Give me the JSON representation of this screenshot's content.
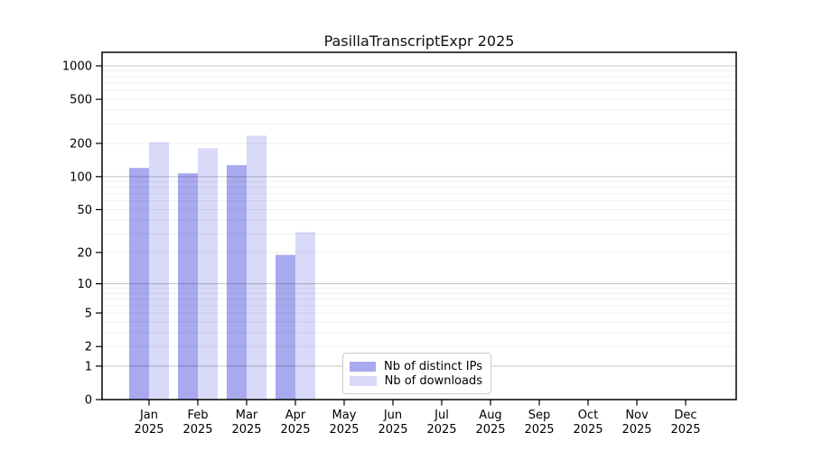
{
  "chart_data": {
    "type": "bar",
    "title": "PasillaTranscriptExpr 2025",
    "categories": [
      "Jan",
      "Feb",
      "Mar",
      "Apr",
      "May",
      "Jun",
      "Jul",
      "Aug",
      "Sep",
      "Oct",
      "Nov",
      "Dec"
    ],
    "x_year_label": "2025",
    "series": [
      {
        "name": "Nb of distinct IPs",
        "color": "#a9a9ef",
        "values": [
          120,
          107,
          127,
          19,
          0,
          0,
          0,
          0,
          0,
          0,
          0,
          0
        ]
      },
      {
        "name": "Nb of downloads",
        "color": "#d9d9f8",
        "values": [
          205,
          181,
          235,
          31,
          0,
          0,
          0,
          0,
          0,
          0,
          0,
          0
        ]
      }
    ],
    "yscale": "log1p",
    "yticks": [
      0,
      1,
      2,
      5,
      10,
      20,
      50,
      100,
      200,
      500,
      1000
    ],
    "ylim": [
      0,
      1325
    ],
    "grid": "horizontal-minor-and-major",
    "legend_position": "bottom-center",
    "frame": true
  },
  "colors": {
    "major_gridline_powers_of_ten": "#c8c8c8",
    "minor_gridline": "#efefef",
    "axis_frame": "#000000",
    "background": "#ffffff"
  }
}
